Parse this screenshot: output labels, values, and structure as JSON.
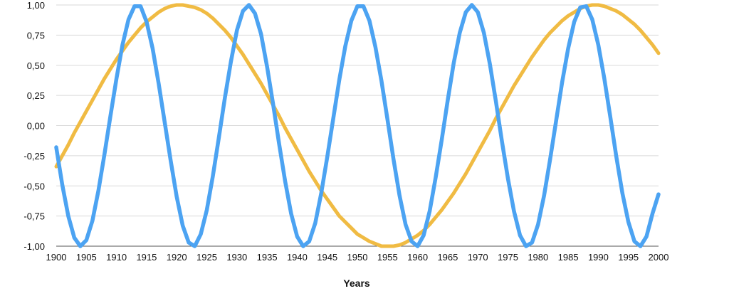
{
  "chart_data": {
    "type": "line",
    "xlabel": "Years",
    "ylabel": "",
    "xlim": [
      1900,
      2000
    ],
    "ylim": [
      -1.0,
      1.0
    ],
    "x_ticks": [
      1900,
      1905,
      1910,
      1915,
      1920,
      1925,
      1930,
      1935,
      1940,
      1945,
      1950,
      1955,
      1960,
      1965,
      1970,
      1975,
      1980,
      1985,
      1990,
      1995,
      2000
    ],
    "x_tick_labels": [
      "1900",
      "1905",
      "1910",
      "1915",
      "1920",
      "1925",
      "1930",
      "1935",
      "1940",
      "1945",
      "1950",
      "1955",
      "1960",
      "1965",
      "1970",
      "1975",
      "1980",
      "1985",
      "1990",
      "1995",
      "2000"
    ],
    "y_ticks": [
      -1.0,
      -0.75,
      -0.5,
      -0.25,
      0.0,
      0.25,
      0.5,
      0.75,
      1.0
    ],
    "y_tick_labels": [
      "-1,00",
      "-0,75",
      "-0,50",
      "-0,25",
      "0,00",
      "0,25",
      "0,50",
      "0,75",
      "1,00"
    ],
    "grid": true,
    "legend": "none",
    "x": [
      1900,
      1901,
      1902,
      1903,
      1904,
      1905,
      1906,
      1907,
      1908,
      1909,
      1910,
      1911,
      1912,
      1913,
      1914,
      1915,
      1916,
      1917,
      1918,
      1919,
      1920,
      1921,
      1922,
      1923,
      1924,
      1925,
      1926,
      1927,
      1928,
      1929,
      1930,
      1931,
      1932,
      1933,
      1934,
      1935,
      1936,
      1937,
      1938,
      1939,
      1940,
      1941,
      1942,
      1943,
      1944,
      1945,
      1946,
      1947,
      1948,
      1949,
      1950,
      1951,
      1952,
      1953,
      1954,
      1955,
      1956,
      1957,
      1958,
      1959,
      1960,
      1961,
      1962,
      1963,
      1964,
      1965,
      1966,
      1967,
      1968,
      1969,
      1970,
      1971,
      1972,
      1973,
      1974,
      1975,
      1976,
      1977,
      1978,
      1979,
      1980,
      1981,
      1982,
      1983,
      1984,
      1985,
      1986,
      1987,
      1988,
      1989,
      1990,
      1991,
      1992,
      1993,
      1994,
      1995,
      1996,
      1997,
      1998,
      1999,
      2000
    ],
    "series": [
      {
        "color": "#f0bb43",
        "values": [
          -0.34,
          -0.25,
          -0.16,
          -0.06,
          0.03,
          0.12,
          0.21,
          0.3,
          0.39,
          0.47,
          0.55,
          0.62,
          0.69,
          0.75,
          0.81,
          0.86,
          0.9,
          0.94,
          0.97,
          0.99,
          1.0,
          1.0,
          0.99,
          0.98,
          0.96,
          0.93,
          0.89,
          0.84,
          0.79,
          0.73,
          0.66,
          0.59,
          0.51,
          0.43,
          0.35,
          0.26,
          0.17,
          0.08,
          -0.02,
          -0.11,
          -0.2,
          -0.29,
          -0.38,
          -0.46,
          -0.54,
          -0.61,
          -0.68,
          -0.75,
          -0.8,
          -0.85,
          -0.9,
          -0.93,
          -0.96,
          -0.98,
          -1.0,
          -1.0,
          -1.0,
          -0.99,
          -0.97,
          -0.94,
          -0.91,
          -0.87,
          -0.82,
          -0.76,
          -0.7,
          -0.63,
          -0.56,
          -0.48,
          -0.4,
          -0.31,
          -0.22,
          -0.13,
          -0.04,
          0.06,
          0.15,
          0.24,
          0.33,
          0.41,
          0.49,
          0.57,
          0.64,
          0.71,
          0.77,
          0.82,
          0.87,
          0.91,
          0.94,
          0.97,
          0.99,
          1.0,
          1.0,
          0.99,
          0.97,
          0.95,
          0.92,
          0.88,
          0.84,
          0.79,
          0.73,
          0.67,
          0.6
        ]
      },
      {
        "color": "#4ca3f2",
        "values": [
          -0.18,
          -0.49,
          -0.75,
          -0.93,
          -1.0,
          -0.95,
          -0.79,
          -0.54,
          -0.24,
          0.08,
          0.39,
          0.67,
          0.88,
          0.99,
          0.99,
          0.86,
          0.64,
          0.35,
          0.03,
          -0.29,
          -0.59,
          -0.83,
          -0.97,
          -1.0,
          -0.9,
          -0.7,
          -0.42,
          -0.1,
          0.23,
          0.53,
          0.79,
          0.95,
          1.0,
          0.93,
          0.76,
          0.49,
          0.18,
          -0.15,
          -0.46,
          -0.73,
          -0.92,
          -1.0,
          -0.96,
          -0.81,
          -0.56,
          -0.26,
          0.06,
          0.38,
          0.66,
          0.87,
          0.99,
          0.99,
          0.87,
          0.65,
          0.37,
          0.05,
          -0.28,
          -0.58,
          -0.82,
          -0.96,
          -1.0,
          -0.91,
          -0.71,
          -0.43,
          -0.12,
          0.21,
          0.52,
          0.77,
          0.94,
          1.0,
          0.94,
          0.77,
          0.51,
          0.2,
          -0.13,
          -0.44,
          -0.71,
          -0.91,
          -1.0,
          -0.97,
          -0.82,
          -0.58,
          -0.28,
          0.04,
          0.36,
          0.64,
          0.86,
          0.98,
          0.99,
          0.88,
          0.67,
          0.39,
          0.07,
          -0.26,
          -0.56,
          -0.8,
          -0.96,
          -1.0,
          -0.92,
          -0.73,
          -0.57
        ]
      }
    ]
  }
}
